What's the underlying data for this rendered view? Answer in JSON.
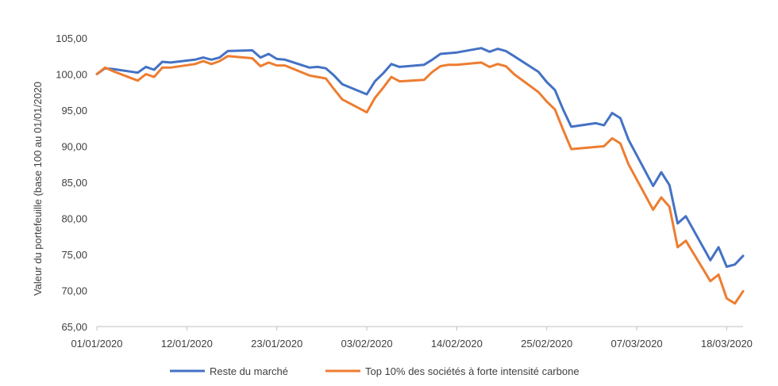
{
  "chart_data": {
    "type": "line",
    "ylabel": "Valeur du portefeuille (base 100 au 01/01/2020",
    "ylim": [
      65,
      105
    ],
    "yticks": [
      "65,00",
      "70,00",
      "75,00",
      "80,00",
      "85,00",
      "90,00",
      "95,00",
      "100,00",
      "105,00"
    ],
    "ytick_values": [
      65,
      70,
      75,
      80,
      85,
      90,
      95,
      100,
      105
    ],
    "xlim": [
      "2020-01-01",
      "2020-03-20"
    ],
    "xticks": [
      "01/01/2020",
      "12/01/2020",
      "23/01/2020",
      "03/02/2020",
      "14/02/2020",
      "25/02/2020",
      "07/03/2020",
      "18/03/2020"
    ],
    "xtick_dates": [
      "2020-01-01",
      "2020-01-12",
      "2020-01-23",
      "2020-02-03",
      "2020-02-14",
      "2020-02-25",
      "2020-03-07",
      "2020-03-18"
    ],
    "grid": false,
    "legend_position": "bottom",
    "series": [
      {
        "name": "Reste du marché",
        "color": "#4472C4",
        "x": [
          "2020-01-01",
          "2020-01-02",
          "2020-01-03",
          "2020-01-06",
          "2020-01-07",
          "2020-01-08",
          "2020-01-09",
          "2020-01-10",
          "2020-01-13",
          "2020-01-14",
          "2020-01-15",
          "2020-01-16",
          "2020-01-17",
          "2020-01-20",
          "2020-01-21",
          "2020-01-22",
          "2020-01-23",
          "2020-01-24",
          "2020-01-27",
          "2020-01-28",
          "2020-01-29",
          "2020-01-30",
          "2020-01-31",
          "2020-02-03",
          "2020-02-04",
          "2020-02-05",
          "2020-02-06",
          "2020-02-07",
          "2020-02-10",
          "2020-02-11",
          "2020-02-12",
          "2020-02-13",
          "2020-02-14",
          "2020-02-17",
          "2020-02-18",
          "2020-02-19",
          "2020-02-20",
          "2020-02-21",
          "2020-02-24",
          "2020-02-25",
          "2020-02-26",
          "2020-02-27",
          "2020-02-28",
          "2020-03-02",
          "2020-03-03",
          "2020-03-04",
          "2020-03-05",
          "2020-03-06",
          "2020-03-09",
          "2020-03-10",
          "2020-03-11",
          "2020-03-12",
          "2020-03-13",
          "2020-03-16",
          "2020-03-17",
          "2020-03-18",
          "2020-03-19",
          "2020-03-20"
        ],
        "values": [
          100.0,
          100.8,
          100.7,
          100.2,
          101.0,
          100.6,
          101.7,
          101.6,
          102.0,
          102.3,
          102.0,
          102.3,
          103.2,
          103.3,
          102.3,
          102.8,
          102.1,
          102.0,
          100.9,
          101.0,
          100.8,
          99.8,
          98.6,
          97.2,
          99.0,
          100.1,
          101.4,
          101.0,
          101.3,
          102.0,
          102.8,
          102.9,
          103.0,
          103.6,
          103.1,
          103.5,
          103.2,
          102.5,
          100.3,
          98.9,
          97.8,
          95.1,
          92.7,
          93.2,
          92.9,
          94.6,
          93.9,
          90.9,
          84.5,
          86.4,
          84.6,
          79.3,
          80.3,
          74.2,
          76.0,
          73.3,
          73.6,
          74.8
        ]
      },
      {
        "name": "Top 10% des sociétés à forte intensité carbone",
        "color": "#ED7D31",
        "x": [
          "2020-01-01",
          "2020-01-02",
          "2020-01-03",
          "2020-01-06",
          "2020-01-07",
          "2020-01-08",
          "2020-01-09",
          "2020-01-10",
          "2020-01-13",
          "2020-01-14",
          "2020-01-15",
          "2020-01-16",
          "2020-01-17",
          "2020-01-20",
          "2020-01-21",
          "2020-01-22",
          "2020-01-23",
          "2020-01-24",
          "2020-01-27",
          "2020-01-28",
          "2020-01-29",
          "2020-01-30",
          "2020-01-31",
          "2020-02-03",
          "2020-02-04",
          "2020-02-05",
          "2020-02-06",
          "2020-02-07",
          "2020-02-10",
          "2020-02-11",
          "2020-02-12",
          "2020-02-13",
          "2020-02-14",
          "2020-02-17",
          "2020-02-18",
          "2020-02-19",
          "2020-02-20",
          "2020-02-21",
          "2020-02-24",
          "2020-02-25",
          "2020-02-26",
          "2020-02-27",
          "2020-02-28",
          "2020-03-02",
          "2020-03-03",
          "2020-03-04",
          "2020-03-05",
          "2020-03-06",
          "2020-03-09",
          "2020-03-10",
          "2020-03-11",
          "2020-03-12",
          "2020-03-13",
          "2020-03-16",
          "2020-03-17",
          "2020-03-18",
          "2020-03-19",
          "2020-03-20"
        ],
        "values": [
          100.0,
          100.9,
          100.4,
          99.1,
          100.0,
          99.6,
          100.9,
          100.9,
          101.4,
          101.8,
          101.4,
          101.8,
          102.5,
          102.2,
          101.1,
          101.6,
          101.2,
          101.2,
          99.8,
          99.6,
          99.4,
          97.9,
          96.5,
          94.7,
          96.7,
          98.1,
          99.6,
          99.0,
          99.2,
          100.3,
          101.1,
          101.3,
          101.3,
          101.6,
          101.0,
          101.4,
          101.1,
          100.0,
          97.5,
          96.2,
          95.1,
          92.3,
          89.6,
          89.9,
          90.0,
          91.1,
          90.4,
          87.5,
          81.2,
          82.9,
          81.6,
          76.0,
          76.9,
          71.3,
          72.2,
          68.9,
          68.2,
          69.9
        ]
      }
    ]
  }
}
